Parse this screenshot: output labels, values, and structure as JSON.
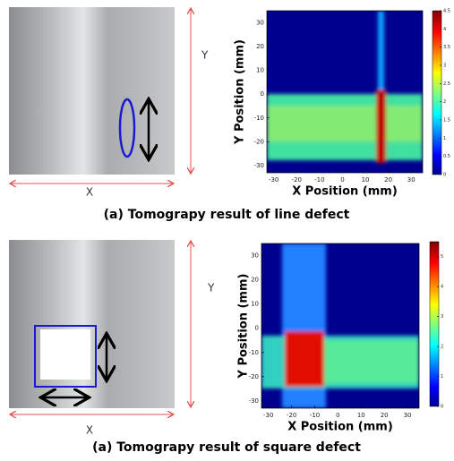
{
  "panels": [
    {
      "photo_labels": {
        "y": "Y",
        "x": "X"
      },
      "plot": {
        "x_label": "X Position (mm)",
        "y_label": "Y Position (mm)",
        "xticks": [
          -30,
          -20,
          -10,
          0,
          10,
          20,
          30
        ],
        "yticks": [
          -30,
          -20,
          -10,
          0,
          10,
          20,
          30
        ],
        "xlim": [
          -33,
          35
        ],
        "ylim": [
          -33,
          35
        ],
        "colorbar_ticks": [
          0,
          0.5,
          1,
          1.5,
          2,
          2.5,
          3,
          3.5,
          4,
          4.5
        ],
        "colorbar_lim": [
          0,
          4.5
        ]
      },
      "caption": "(a) Tomograpy result of line defect"
    },
    {
      "photo_labels": {
        "y": "Y",
        "x": "X"
      },
      "plot": {
        "x_label": "X Position (mm)",
        "y_label": "Y Position (mm)",
        "xticks": [
          -30,
          -20,
          -10,
          0,
          10,
          20,
          30
        ],
        "yticks": [
          -30,
          -20,
          -10,
          0,
          10,
          20,
          30
        ],
        "xlim": [
          -33,
          35
        ],
        "ylim": [
          -33,
          35
        ],
        "colorbar_ticks": [
          0,
          1,
          2,
          3,
          4,
          5
        ],
        "colorbar_lim": [
          0,
          5.5
        ]
      },
      "caption": "(a) Tomograpy result of square defect"
    }
  ]
}
